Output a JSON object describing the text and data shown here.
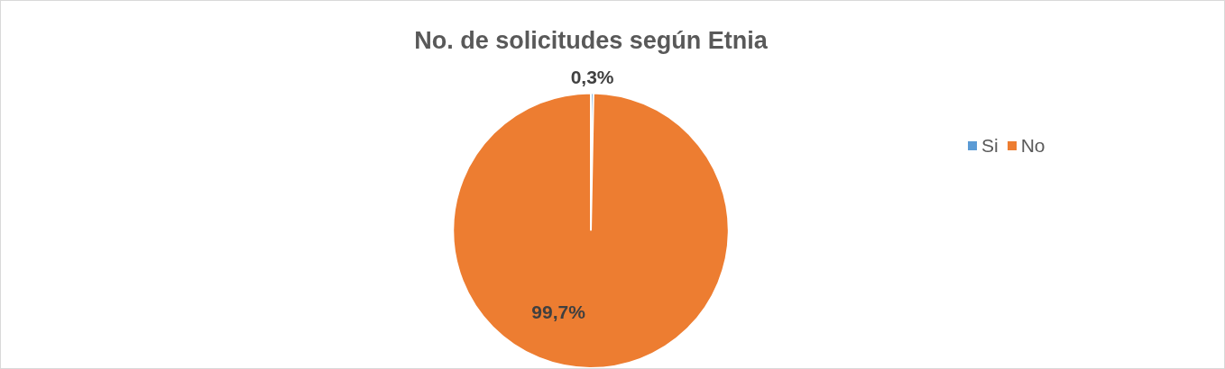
{
  "chart_data": {
    "type": "pie",
    "title": "No. de solicitudes según Etnia",
    "categories": [
      "Si",
      "No"
    ],
    "values": [
      0.3,
      99.7
    ],
    "colors": [
      "#5b9bd5",
      "#ed7d31"
    ],
    "value_labels": [
      "0,3%",
      "99,7%"
    ],
    "legend": "right"
  }
}
